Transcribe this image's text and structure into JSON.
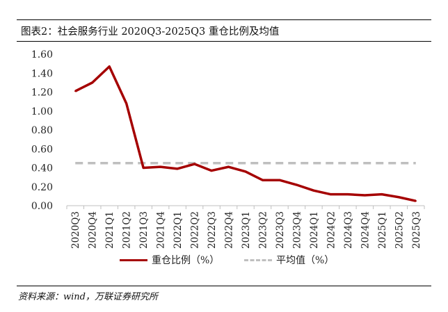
{
  "figure": {
    "title": "图表2：社会服务行业 2020Q3-2025Q3 重仓比例及均值",
    "source": "资料来源：wind，万联证券研究所"
  },
  "colors": {
    "series_line": "#a50000",
    "average_line": "#bfbfbf",
    "axis": "#bfbfbf"
  },
  "chart_data": {
    "type": "line",
    "title": "",
    "xlabel": "",
    "ylabel": "",
    "ylim": [
      0,
      1.6
    ],
    "yticks": [
      "0.00",
      "0.20",
      "0.40",
      "0.60",
      "0.80",
      "1.00",
      "1.20",
      "1.40",
      "1.60"
    ],
    "grid": false,
    "legend_position": "bottom",
    "categories": [
      "2020Q3",
      "2020Q4",
      "2021Q1",
      "2021Q2",
      "2021Q3",
      "2021Q4",
      "2022Q1",
      "2022Q2",
      "2022Q3",
      "2022Q4",
      "2023Q1",
      "2023Q2",
      "2023Q3",
      "2023Q4",
      "2024Q1",
      "2024Q2",
      "2024Q3",
      "2024Q4",
      "2025Q1",
      "2025Q2",
      "2025Q3"
    ],
    "series": [
      {
        "name": "重仓比例（%）",
        "style": "solid",
        "values": [
          1.21,
          1.3,
          1.47,
          1.08,
          0.4,
          0.41,
          0.39,
          0.44,
          0.37,
          0.41,
          0.36,
          0.27,
          0.27,
          0.22,
          0.16,
          0.12,
          0.12,
          0.11,
          0.12,
          0.09,
          0.05
        ]
      },
      {
        "name": "平均值（%）",
        "style": "dashed",
        "values": [
          0.45,
          0.45,
          0.45,
          0.45,
          0.45,
          0.45,
          0.45,
          0.45,
          0.45,
          0.45,
          0.45,
          0.45,
          0.45,
          0.45,
          0.45,
          0.45,
          0.45,
          0.45,
          0.45,
          0.45,
          0.45
        ]
      }
    ]
  }
}
